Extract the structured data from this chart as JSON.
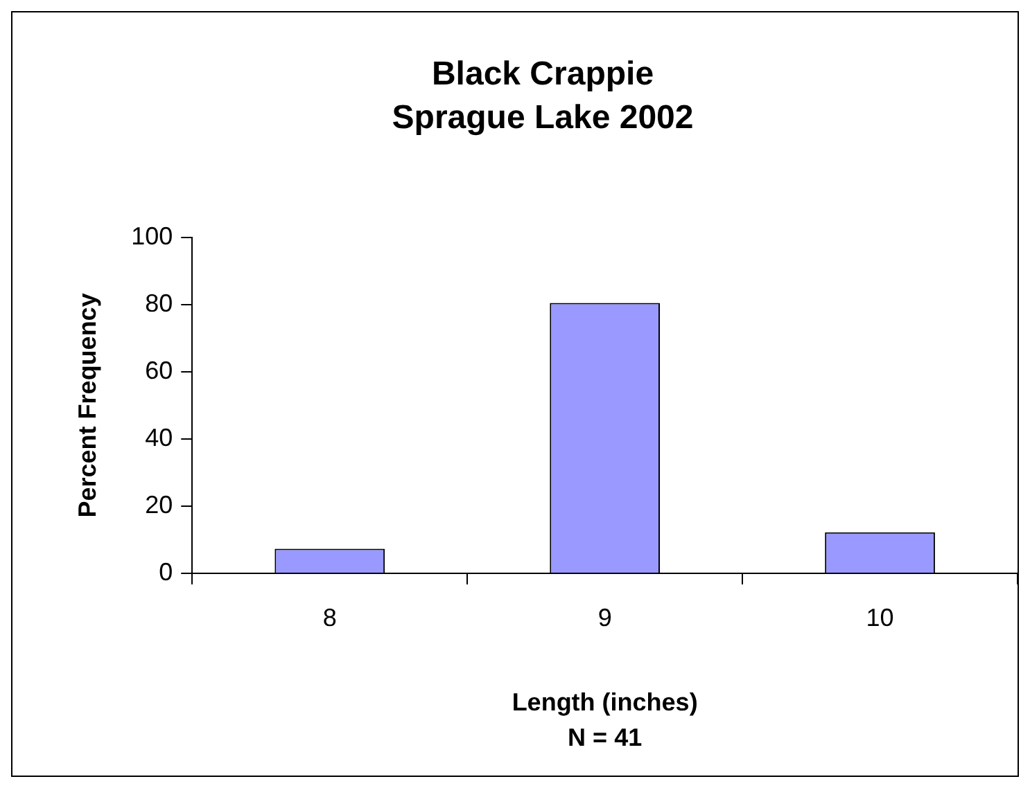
{
  "chart_data": {
    "type": "bar",
    "title": "Black Crappie\nSprague Lake 2002",
    "xlabel": "Length (inches)",
    "ylabel": "Percent Frequency",
    "annotations": [
      "N = 41"
    ],
    "categories": [
      "8",
      "9",
      "10"
    ],
    "series": [
      {
        "color": "#9999ff",
        "values": [
          7.3,
          80.5,
          12.2
        ]
      }
    ],
    "ylim": [
      0,
      100
    ],
    "yticks": [
      0,
      20,
      40,
      60,
      80,
      100
    ],
    "grid": false,
    "legend": false
  }
}
